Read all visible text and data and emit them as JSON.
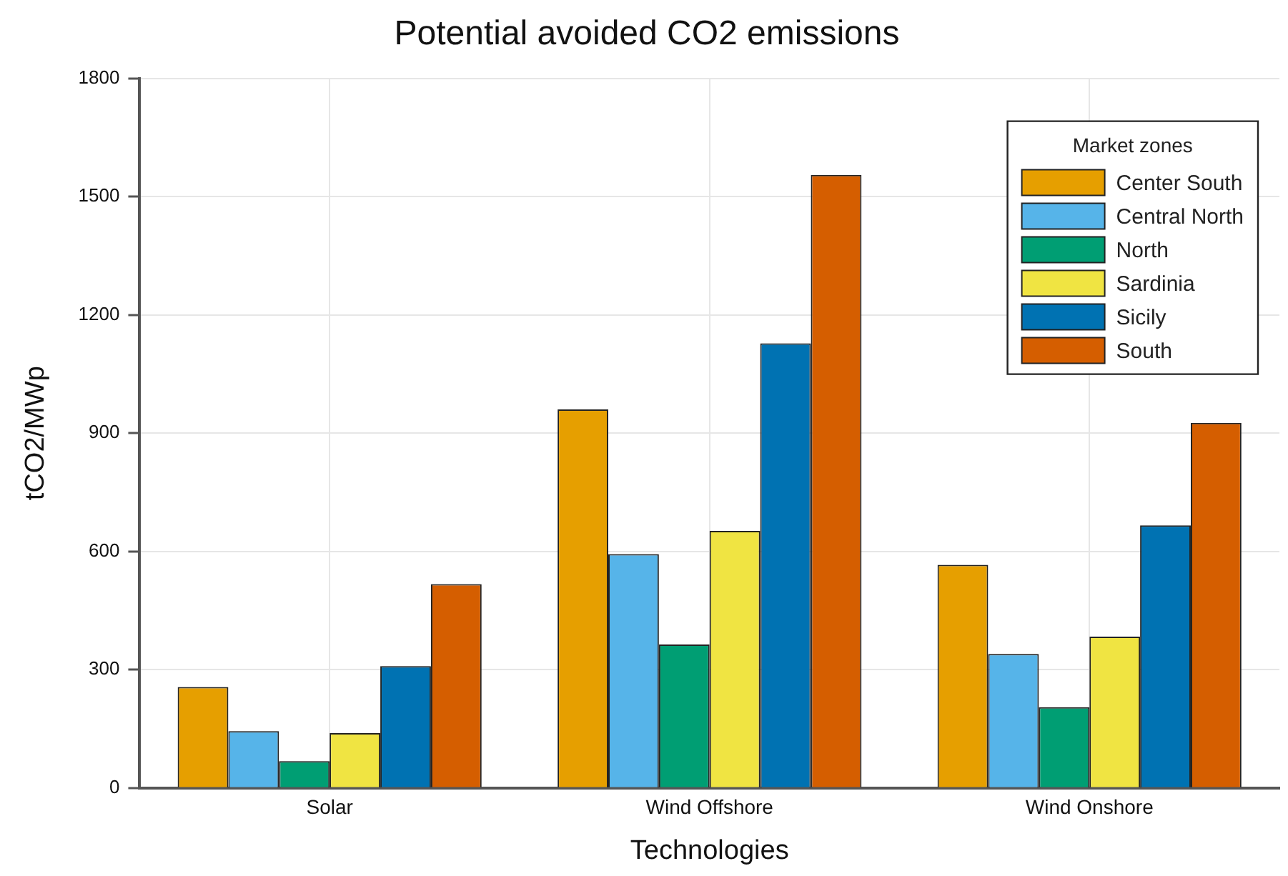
{
  "chart_data": {
    "type": "bar",
    "title": "Potential avoided CO2 emissions",
    "xlabel": "Technologies",
    "ylabel": "tCO2/MWp",
    "legend_title": "Market zones",
    "categories": [
      "Solar",
      "Wind Offshore",
      "Wind Onshore"
    ],
    "series": [
      {
        "name": "Center South",
        "color": "#e69f00",
        "values": [
          256,
          960,
          566
        ]
      },
      {
        "name": "Central North",
        "color": "#56b4e9",
        "values": [
          144,
          593,
          340
        ]
      },
      {
        "name": "North",
        "color": "#009e73",
        "values": [
          68,
          364,
          205
        ]
      },
      {
        "name": "Sardinia",
        "color": "#f0e442",
        "values": [
          139,
          652,
          384
        ]
      },
      {
        "name": "Sicily",
        "color": "#0072b2",
        "values": [
          309,
          1128,
          666
        ]
      },
      {
        "name": "South",
        "color": "#d55e00",
        "values": [
          517,
          1555,
          926
        ]
      }
    ],
    "ylim": [
      0,
      1800
    ],
    "yticks": [
      0,
      300,
      600,
      900,
      1200,
      1500,
      1800
    ],
    "grid": true,
    "legend": "top right"
  }
}
